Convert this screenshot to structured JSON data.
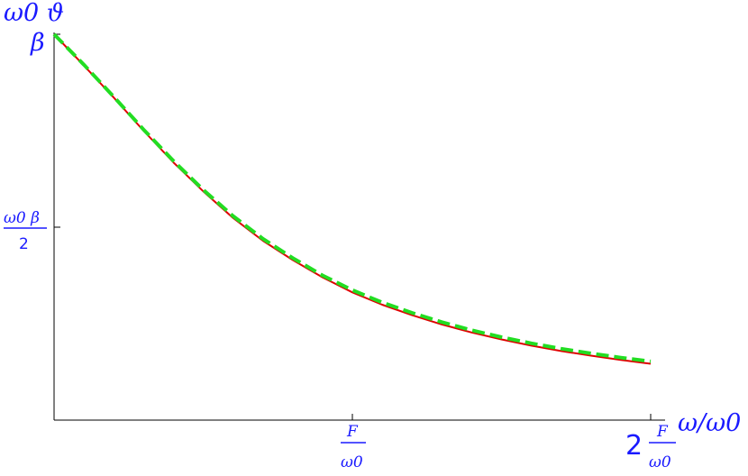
{
  "chart_data": {
    "type": "line",
    "ylabel_top": "ω0 ϑ",
    "ylabel_sub": "β",
    "xlabel": "ω/ω0",
    "y_tick_labels": [
      {
        "num": "ω0 β",
        "den": "2"
      }
    ],
    "x_tick_labels": [
      {
        "coef": "",
        "num": "F",
        "den": "ω0"
      },
      {
        "coef": "2",
        "num": "F",
        "den": "ω0"
      }
    ],
    "xlim": [
      0,
      2
    ],
    "ylim": [
      0,
      1
    ],
    "x_unit_label": "F/ω0",
    "y_unit_label": "ω0 β",
    "series": [
      {
        "color": "#e00000",
        "style": "solid",
        "x": [
          0,
          0.1,
          0.2,
          0.3,
          0.4,
          0.5,
          0.6,
          0.7,
          0.8,
          0.9,
          1.0,
          1.1,
          1.2,
          1.3,
          1.4,
          1.5,
          1.6,
          1.7,
          1.8,
          1.9,
          2.0
        ],
        "y": [
          1.0,
          0.919,
          0.836,
          0.75,
          0.668,
          0.593,
          0.524,
          0.465,
          0.415,
          0.37,
          0.331,
          0.299,
          0.272,
          0.248,
          0.227,
          0.209,
          0.193,
          0.179,
          0.167,
          0.156,
          0.146
        ]
      },
      {
        "color": "#22dd22",
        "style": "dashed",
        "x": [
          0,
          0.1,
          0.2,
          0.3,
          0.4,
          0.5,
          0.6,
          0.7,
          0.8,
          0.9,
          1.0,
          1.1,
          1.2,
          1.3,
          1.4,
          1.5,
          1.6,
          1.7,
          1.8,
          1.9,
          2.0
        ],
        "y": [
          1.0,
          0.921,
          0.838,
          0.753,
          0.672,
          0.597,
          0.529,
          0.47,
          0.42,
          0.375,
          0.337,
          0.305,
          0.278,
          0.254,
          0.233,
          0.215,
          0.199,
          0.185,
          0.173,
          0.162,
          0.152
        ]
      }
    ]
  }
}
